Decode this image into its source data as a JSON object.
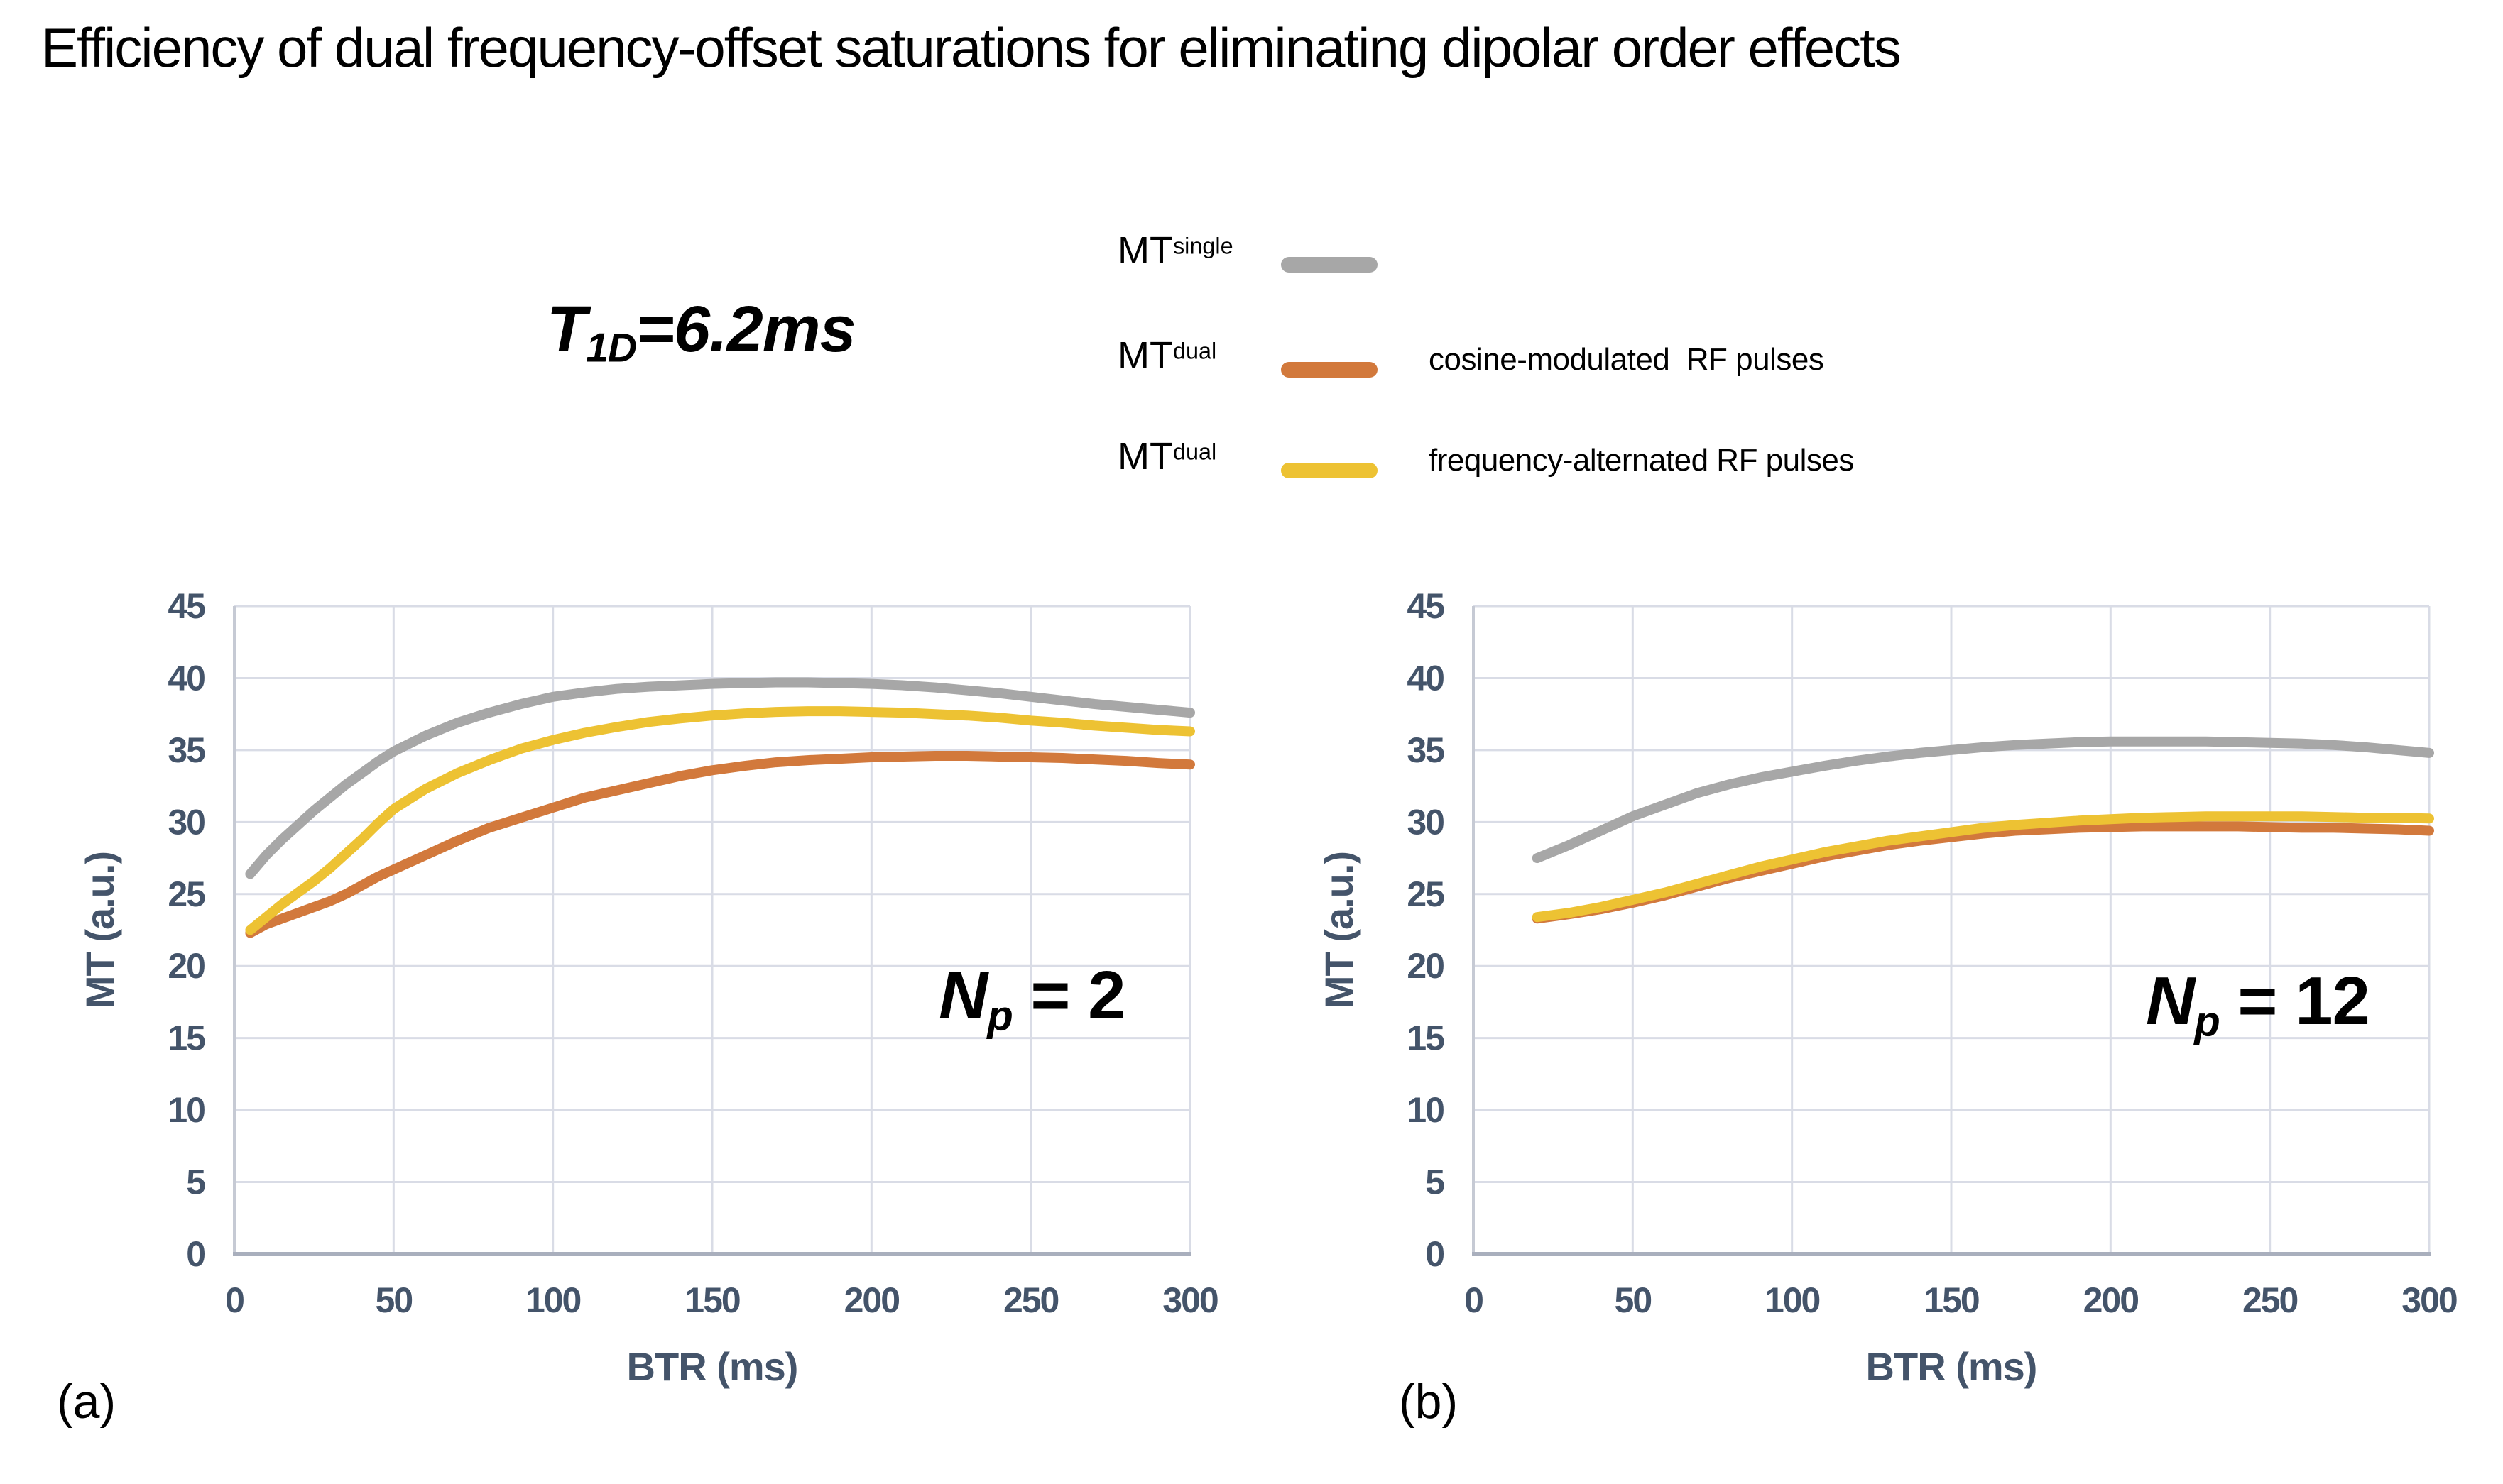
{
  "title": "Efficiency of dual frequency-offset saturations for eliminating dipolar order effects",
  "condition_label": {
    "base": "T",
    "sub": "1D",
    "rest": "=6.2ms"
  },
  "colors": {
    "axis_text": "#44546A",
    "grid": "#D9DCE6",
    "y_axis_line": "#C6CAD4",
    "x_axis_line": "#A9AFBD",
    "series_single": "#A7A7A7",
    "series_cosine": "#D2793C",
    "series_freq": "#EDC233"
  },
  "legend": {
    "entries": [
      {
        "base": "MT",
        "sup": "single",
        "desc": "",
        "color": "#A7A7A7"
      },
      {
        "base": "MT",
        "sup": "dual",
        "desc": "cosine-modulated  RF pulses",
        "color": "#D2793C"
      },
      {
        "base": "MT",
        "sup": "dual",
        "desc": "frequency-alternated RF pulses",
        "color": "#EDC233"
      }
    ]
  },
  "chart_data": [
    {
      "type": "line",
      "panel_label": "(a)",
      "annotation": {
        "base": "N",
        "sub": "p",
        "rest": " = 2"
      },
      "xlabel": "BTR (ms)",
      "ylabel": "MT (a.u.)",
      "xlim": [
        0,
        300
      ],
      "ylim": [
        0,
        45
      ],
      "xticks": [
        0,
        50,
        100,
        150,
        200,
        250,
        300
      ],
      "yticks": [
        0,
        5,
        10,
        15,
        20,
        25,
        30,
        35,
        40,
        45
      ],
      "grid": true,
      "legend_position": "top-right-outside",
      "series": [
        {
          "name": "MT single",
          "color": "#A7A7A7",
          "points": [
            [
              5,
              26.4
            ],
            [
              10,
              27.7
            ],
            [
              15,
              28.8
            ],
            [
              20,
              29.8
            ],
            [
              25,
              30.8
            ],
            [
              30,
              31.7
            ],
            [
              35,
              32.6
            ],
            [
              40,
              33.4
            ],
            [
              45,
              34.2
            ],
            [
              50,
              34.9
            ],
            [
              60,
              36.0
            ],
            [
              70,
              36.9
            ],
            [
              80,
              37.6
            ],
            [
              90,
              38.2
            ],
            [
              100,
              38.7
            ],
            [
              110,
              39.0
            ],
            [
              120,
              39.25
            ],
            [
              130,
              39.4
            ],
            [
              140,
              39.5
            ],
            [
              150,
              39.6
            ],
            [
              160,
              39.65
            ],
            [
              170,
              39.7
            ],
            [
              180,
              39.7
            ],
            [
              190,
              39.65
            ],
            [
              200,
              39.6
            ],
            [
              210,
              39.5
            ],
            [
              220,
              39.35
            ],
            [
              230,
              39.15
            ],
            [
              240,
              38.95
            ],
            [
              250,
              38.7
            ],
            [
              260,
              38.45
            ],
            [
              270,
              38.2
            ],
            [
              280,
              38.0
            ],
            [
              290,
              37.8
            ],
            [
              300,
              37.6
            ]
          ]
        },
        {
          "name": "MT dual cosine-modulated RF pulses",
          "color": "#D2793C",
          "points": [
            [
              5,
              22.3
            ],
            [
              10,
              22.9
            ],
            [
              15,
              23.3
            ],
            [
              20,
              23.7
            ],
            [
              25,
              24.1
            ],
            [
              30,
              24.5
            ],
            [
              35,
              25.0
            ],
            [
              40,
              25.6
            ],
            [
              45,
              26.2
            ],
            [
              50,
              26.7
            ],
            [
              60,
              27.7
            ],
            [
              70,
              28.7
            ],
            [
              80,
              29.6
            ],
            [
              90,
              30.3
            ],
            [
              100,
              31.0
            ],
            [
              110,
              31.7
            ],
            [
              120,
              32.2
            ],
            [
              130,
              32.7
            ],
            [
              140,
              33.2
            ],
            [
              150,
              33.6
            ],
            [
              160,
              33.9
            ],
            [
              170,
              34.15
            ],
            [
              180,
              34.3
            ],
            [
              190,
              34.4
            ],
            [
              200,
              34.5
            ],
            [
              210,
              34.55
            ],
            [
              220,
              34.6
            ],
            [
              230,
              34.6
            ],
            [
              240,
              34.55
            ],
            [
              250,
              34.5
            ],
            [
              260,
              34.45
            ],
            [
              270,
              34.35
            ],
            [
              280,
              34.25
            ],
            [
              290,
              34.1
            ],
            [
              300,
              34.0
            ]
          ]
        },
        {
          "name": "MT dual frequency-alternated RF pulses",
          "color": "#EDC233",
          "points": [
            [
              5,
              22.5
            ],
            [
              10,
              23.4
            ],
            [
              15,
              24.3
            ],
            [
              20,
              25.1
            ],
            [
              25,
              25.9
            ],
            [
              30,
              26.8
            ],
            [
              35,
              27.8
            ],
            [
              40,
              28.8
            ],
            [
              45,
              29.9
            ],
            [
              50,
              30.9
            ],
            [
              60,
              32.3
            ],
            [
              70,
              33.4
            ],
            [
              80,
              34.3
            ],
            [
              90,
              35.1
            ],
            [
              100,
              35.7
            ],
            [
              110,
              36.2
            ],
            [
              120,
              36.6
            ],
            [
              130,
              36.95
            ],
            [
              140,
              37.2
            ],
            [
              150,
              37.4
            ],
            [
              160,
              37.55
            ],
            [
              170,
              37.65
            ],
            [
              180,
              37.7
            ],
            [
              190,
              37.7
            ],
            [
              200,
              37.65
            ],
            [
              210,
              37.6
            ],
            [
              220,
              37.5
            ],
            [
              230,
              37.4
            ],
            [
              240,
              37.25
            ],
            [
              250,
              37.05
            ],
            [
              260,
              36.9
            ],
            [
              270,
              36.7
            ],
            [
              280,
              36.55
            ],
            [
              290,
              36.4
            ],
            [
              300,
              36.3
            ]
          ]
        }
      ]
    },
    {
      "type": "line",
      "panel_label": "(b)",
      "annotation": {
        "base": "N",
        "sub": "p",
        "rest": " = 12"
      },
      "xlabel": "BTR (ms)",
      "ylabel": "MT (a.u.)",
      "xlim": [
        0,
        300
      ],
      "ylim": [
        0,
        45
      ],
      "xticks": [
        0,
        50,
        100,
        150,
        200,
        250,
        300
      ],
      "yticks": [
        0,
        5,
        10,
        15,
        20,
        25,
        30,
        35,
        40,
        45
      ],
      "grid": true,
      "series": [
        {
          "name": "MT single",
          "color": "#A7A7A7",
          "points": [
            [
              20,
              27.5
            ],
            [
              30,
              28.4
            ],
            [
              40,
              29.4
            ],
            [
              50,
              30.4
            ],
            [
              60,
              31.2
            ],
            [
              70,
              32.0
            ],
            [
              80,
              32.6
            ],
            [
              90,
              33.1
            ],
            [
              100,
              33.5
            ],
            [
              110,
              33.9
            ],
            [
              120,
              34.25
            ],
            [
              130,
              34.55
            ],
            [
              140,
              34.8
            ],
            [
              150,
              35.0
            ],
            [
              160,
              35.2
            ],
            [
              170,
              35.35
            ],
            [
              180,
              35.45
            ],
            [
              190,
              35.55
            ],
            [
              200,
              35.6
            ],
            [
              210,
              35.6
            ],
            [
              220,
              35.6
            ],
            [
              230,
              35.6
            ],
            [
              240,
              35.55
            ],
            [
              250,
              35.5
            ],
            [
              260,
              35.45
            ],
            [
              270,
              35.35
            ],
            [
              280,
              35.2
            ],
            [
              290,
              35.0
            ],
            [
              300,
              34.8
            ]
          ]
        },
        {
          "name": "MT dual cosine-modulated RF pulses",
          "color": "#D2793C",
          "points": [
            [
              20,
              23.3
            ],
            [
              30,
              23.6
            ],
            [
              40,
              23.95
            ],
            [
              50,
              24.4
            ],
            [
              60,
              24.9
            ],
            [
              70,
              25.5
            ],
            [
              80,
              26.1
            ],
            [
              90,
              26.6
            ],
            [
              100,
              27.1
            ],
            [
              110,
              27.6
            ],
            [
              120,
              28.0
            ],
            [
              130,
              28.4
            ],
            [
              140,
              28.7
            ],
            [
              150,
              28.95
            ],
            [
              160,
              29.2
            ],
            [
              170,
              29.4
            ],
            [
              180,
              29.5
            ],
            [
              190,
              29.6
            ],
            [
              200,
              29.65
            ],
            [
              210,
              29.7
            ],
            [
              220,
              29.7
            ],
            [
              230,
              29.7
            ],
            [
              240,
              29.7
            ],
            [
              250,
              29.65
            ],
            [
              260,
              29.6
            ],
            [
              270,
              29.6
            ],
            [
              280,
              29.55
            ],
            [
              290,
              29.5
            ],
            [
              300,
              29.4
            ]
          ]
        },
        {
          "name": "MT dual frequency-alternated RF pulses",
          "color": "#EDC233",
          "points": [
            [
              20,
              23.4
            ],
            [
              30,
              23.7
            ],
            [
              40,
              24.1
            ],
            [
              50,
              24.6
            ],
            [
              60,
              25.1
            ],
            [
              70,
              25.7
            ],
            [
              80,
              26.3
            ],
            [
              90,
              26.9
            ],
            [
              100,
              27.4
            ],
            [
              110,
              27.9
            ],
            [
              120,
              28.3
            ],
            [
              130,
              28.7
            ],
            [
              140,
              29.0
            ],
            [
              150,
              29.3
            ],
            [
              160,
              29.6
            ],
            [
              170,
              29.8
            ],
            [
              180,
              29.95
            ],
            [
              190,
              30.1
            ],
            [
              200,
              30.2
            ],
            [
              210,
              30.3
            ],
            [
              220,
              30.35
            ],
            [
              230,
              30.4
            ],
            [
              240,
              30.4
            ],
            [
              250,
              30.4
            ],
            [
              260,
              30.4
            ],
            [
              270,
              30.35
            ],
            [
              280,
              30.3
            ],
            [
              290,
              30.3
            ],
            [
              300,
              30.25
            ]
          ]
        }
      ]
    }
  ]
}
